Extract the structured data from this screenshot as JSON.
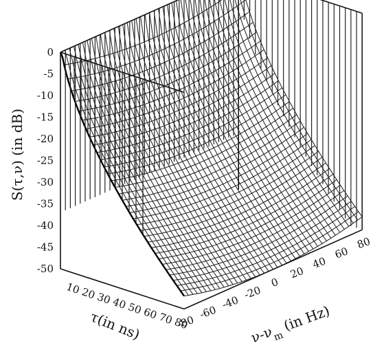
{
  "chart_data": {
    "type": "surface-3d",
    "title": "",
    "zlabel": "S(τ,ν) (in dB)",
    "xlabel": "τ(in ns)",
    "ylabel": "ν-νm (in Hz)",
    "ylabel_main": "ν-ν",
    "ylabel_sub": "m",
    "ylabel_tail": " (in Hz)",
    "zlim": [
      -50,
      0
    ],
    "z_ticks": [
      "0",
      "-5",
      "-10",
      "-15",
      "-20",
      "-25",
      "-30",
      "-35",
      "-40",
      "-45",
      "-50"
    ],
    "tau_range": [
      0,
      80
    ],
    "tau_ticks": [
      "10",
      "20",
      "30",
      "40",
      "50",
      "60",
      "70",
      "80"
    ],
    "nu_range": [
      -80,
      80
    ],
    "nu_ticks": [
      "-80",
      "-60",
      "-40",
      "-20",
      "0",
      "20",
      "40",
      "60",
      "80"
    ],
    "grid": false,
    "surface_shape": "valley: S ≈ 0 dB at τ = 0, falling toward -50 dB at large τ; nearly flat across ν"
  }
}
